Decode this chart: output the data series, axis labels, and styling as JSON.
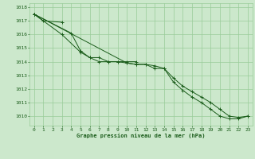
{
  "title": "Graphe pression niveau de la mer (hPa)",
  "background_color": "#cce8cc",
  "grid_color": "#99cc99",
  "line_color": "#1a5c1a",
  "xlim": [
    -0.5,
    23.5
  ],
  "ylim": [
    1009.3,
    1018.3
  ],
  "yticks": [
    1010,
    1011,
    1012,
    1013,
    1014,
    1015,
    1016,
    1017,
    1018
  ],
  "xticks": [
    0,
    1,
    2,
    3,
    4,
    5,
    6,
    7,
    8,
    9,
    10,
    11,
    12,
    13,
    14,
    15,
    16,
    17,
    18,
    19,
    20,
    21,
    22,
    23
  ],
  "series": [
    [
      1017.5,
      1017.0,
      null,
      1016.9,
      null,
      null,
      null,
      null,
      null,
      null,
      null,
      null,
      null,
      null,
      null,
      null,
      null,
      null,
      null,
      null,
      null,
      null,
      null,
      null
    ],
    [
      1017.5,
      null,
      null,
      1016.0,
      null,
      1014.7,
      1014.3,
      1014.3,
      1014.0,
      1014.0,
      1014.0,
      1014.0,
      null,
      null,
      null,
      null,
      null,
      null,
      null,
      null,
      null,
      null,
      null,
      null
    ],
    [
      1017.5,
      null,
      null,
      null,
      1016.1,
      1014.8,
      1014.3,
      1014.0,
      1014.0,
      1014.0,
      1013.9,
      1013.8,
      1013.8,
      1013.7,
      1013.5,
      1012.8,
      1012.2,
      1011.8,
      1011.4,
      1011.0,
      1010.5,
      1010.0,
      1009.9,
      1010.0
    ],
    [
      1017.5,
      null,
      null,
      null,
      null,
      null,
      null,
      null,
      null,
      null,
      1013.9,
      1013.8,
      1013.8,
      1013.5,
      1013.5,
      1012.5,
      1011.9,
      1011.4,
      1011.0,
      1010.5,
      1010.0,
      1009.8,
      1009.8,
      1010.0
    ]
  ]
}
